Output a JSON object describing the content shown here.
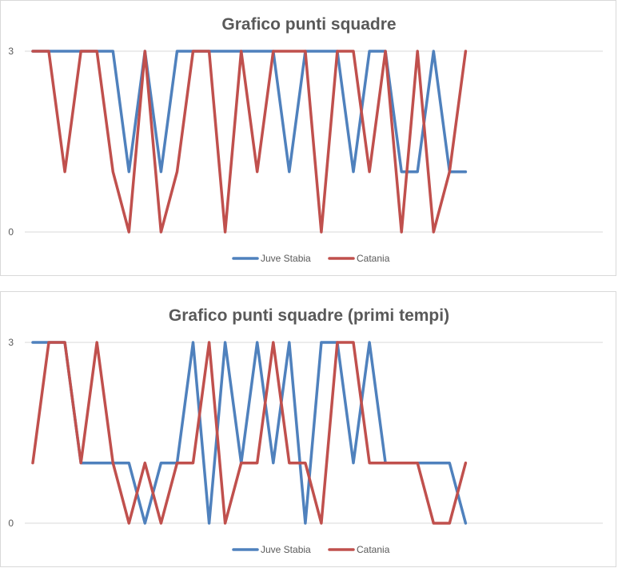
{
  "colors": {
    "juve_stabia": "#4f81bd",
    "catania": "#c0504d"
  },
  "chart_data": [
    {
      "type": "line",
      "title": "Grafico punti squadre",
      "xlabel": "",
      "ylabel": "",
      "ylim": [
        0,
        3
      ],
      "yticks": [
        "0",
        "3"
      ],
      "grid": true,
      "legend": "bottom",
      "x": [
        1,
        2,
        3,
        4,
        5,
        6,
        7,
        8,
        9,
        10,
        11,
        12,
        13,
        14,
        15,
        16,
        17,
        18,
        19,
        20,
        21,
        22,
        23,
        24,
        25,
        26,
        27,
        28
      ],
      "series": [
        {
          "name": "Juve Stabia",
          "color": "#4f81bd",
          "values": [
            3,
            3,
            3,
            3,
            3,
            3,
            1,
            3,
            1,
            3,
            3,
            3,
            3,
            3,
            3,
            3,
            1,
            3,
            3,
            3,
            1,
            3,
            3,
            1,
            1,
            3,
            1,
            1
          ]
        },
        {
          "name": "Catania",
          "color": "#c0504d",
          "values": [
            3,
            3,
            1,
            3,
            3,
            1,
            0,
            3,
            0,
            1,
            3,
            3,
            0,
            3,
            1,
            3,
            3,
            3,
            0,
            3,
            3,
            1,
            3,
            0,
            3,
            0,
            1,
            3
          ]
        }
      ]
    },
    {
      "type": "line",
      "title": "Grafico punti squadre (primi tempi)",
      "xlabel": "",
      "ylabel": "",
      "ylim": [
        0,
        3
      ],
      "yticks": [
        "0",
        "3"
      ],
      "grid": true,
      "legend": "bottom",
      "x": [
        1,
        2,
        3,
        4,
        5,
        6,
        7,
        8,
        9,
        10,
        11,
        12,
        13,
        14,
        15,
        16,
        17,
        18,
        19,
        20,
        21,
        22,
        23,
        24,
        25,
        26,
        27,
        28
      ],
      "series": [
        {
          "name": "Juve Stabia",
          "color": "#4f81bd",
          "values": [
            3,
            3,
            3,
            1,
            1,
            1,
            1,
            0,
            1,
            1,
            3,
            0,
            3,
            1,
            3,
            1,
            3,
            0,
            3,
            3,
            1,
            3,
            1,
            1,
            1,
            1,
            1,
            0
          ]
        },
        {
          "name": "Catania",
          "color": "#c0504d",
          "values": [
            1,
            3,
            3,
            1,
            3,
            1,
            0,
            1,
            0,
            1,
            1,
            3,
            0,
            1,
            1,
            3,
            1,
            1,
            0,
            3,
            3,
            1,
            1,
            1,
            1,
            0,
            0,
            1
          ]
        }
      ]
    }
  ]
}
